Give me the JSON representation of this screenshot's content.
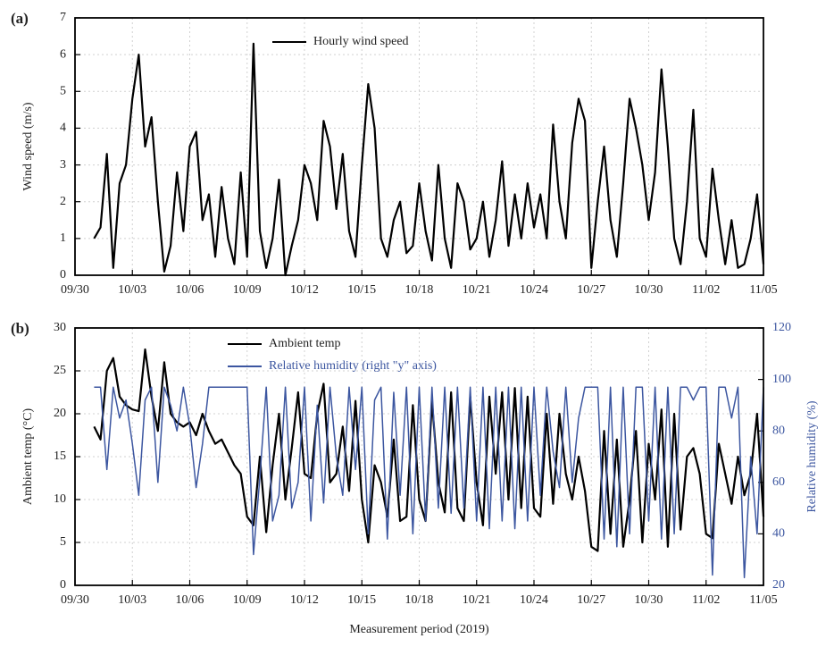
{
  "chart_data": [
    {
      "type": "line",
      "label": "(a)",
      "ylabel": "Wind speed (m/s)",
      "x": [
        24,
        32,
        40,
        48,
        56,
        64,
        72,
        80,
        88,
        96,
        104,
        112,
        120,
        128,
        136,
        144,
        152,
        160,
        168,
        176,
        184,
        192,
        200,
        208,
        216,
        224,
        232,
        240,
        248,
        256,
        264,
        272,
        280,
        288,
        296,
        304,
        312,
        320,
        328,
        336,
        344,
        352,
        360,
        368,
        376,
        384,
        392,
        400,
        408,
        416,
        424,
        432,
        440,
        448,
        456,
        464,
        472,
        480,
        488,
        496,
        504,
        512,
        520,
        528,
        536,
        544,
        552,
        560,
        568,
        576,
        584,
        592,
        600,
        608,
        616,
        624,
        632,
        640,
        648,
        656,
        664,
        672,
        680,
        688,
        696,
        704,
        712,
        720,
        728,
        736,
        744,
        752,
        760,
        768,
        776,
        784,
        792,
        800,
        808,
        816,
        824,
        832,
        840,
        848,
        856,
        864
      ],
      "xlim": [
        0,
        864
      ],
      "xticks": [
        {
          "value": 0,
          "label": "09/30"
        },
        {
          "value": 72,
          "label": "10/03"
        },
        {
          "value": 144,
          "label": "10/06"
        },
        {
          "value": 216,
          "label": "10/09"
        },
        {
          "value": 288,
          "label": "10/12"
        },
        {
          "value": 360,
          "label": "10/15"
        },
        {
          "value": 432,
          "label": "10/18"
        },
        {
          "value": 504,
          "label": "10/21"
        },
        {
          "value": 576,
          "label": "10/24"
        },
        {
          "value": 648,
          "label": "10/27"
        },
        {
          "value": 720,
          "label": "10/30"
        },
        {
          "value": 792,
          "label": "11/02"
        },
        {
          "value": 864,
          "label": "11/05"
        }
      ],
      "ylim": [
        0,
        7
      ],
      "yticks": [
        0,
        1,
        2,
        3,
        4,
        5,
        6,
        7
      ],
      "grid": true,
      "series": [
        {
          "name": "Hourly wind speed",
          "color": "#000000",
          "values": [
            1.0,
            1.3,
            3.3,
            0.2,
            2.5,
            3.0,
            4.8,
            6.0,
            3.5,
            4.3,
            2.0,
            0.1,
            0.8,
            2.8,
            1.2,
            3.5,
            3.9,
            1.5,
            2.2,
            0.5,
            2.4,
            1.0,
            0.3,
            2.8,
            0.5,
            6.3,
            1.2,
            0.2,
            1.0,
            2.6,
            0.0,
            0.8,
            1.5,
            3.0,
            2.5,
            1.5,
            4.2,
            3.5,
            1.8,
            3.3,
            1.2,
            0.5,
            3.0,
            5.2,
            4.0,
            1.0,
            0.5,
            1.5,
            2.0,
            0.6,
            0.8,
            2.5,
            1.2,
            0.4,
            3.0,
            1.0,
            0.2,
            2.5,
            2.0,
            0.7,
            1.0,
            2.0,
            0.5,
            1.5,
            3.1,
            0.8,
            2.2,
            1.0,
            2.5,
            1.3,
            2.2,
            1.0,
            4.1,
            2.0,
            1.0,
            3.6,
            4.8,
            4.2,
            0.2,
            2.0,
            3.5,
            1.5,
            0.5,
            2.5,
            4.8,
            4.0,
            3.0,
            1.5,
            2.8,
            5.6,
            3.5,
            1.0,
            0.3,
            2.0,
            4.5,
            1.0,
            0.5,
            2.9,
            1.5,
            0.3,
            1.5,
            0.2,
            0.3,
            1.0,
            2.2,
            0.3
          ]
        }
      ]
    },
    {
      "type": "line",
      "label": "(b)",
      "ylabel": "Ambient temp (°C)",
      "y2label": "Relative humidity (%)",
      "xlabel": "Measurement period (2019)",
      "x": [
        24,
        32,
        40,
        48,
        56,
        64,
        72,
        80,
        88,
        96,
        104,
        112,
        120,
        128,
        136,
        144,
        152,
        160,
        168,
        176,
        184,
        192,
        200,
        208,
        216,
        224,
        232,
        240,
        248,
        256,
        264,
        272,
        280,
        288,
        296,
        304,
        312,
        320,
        328,
        336,
        344,
        352,
        360,
        368,
        376,
        384,
        392,
        400,
        408,
        416,
        424,
        432,
        440,
        448,
        456,
        464,
        472,
        480,
        488,
        496,
        504,
        512,
        520,
        528,
        536,
        544,
        552,
        560,
        568,
        576,
        584,
        592,
        600,
        608,
        616,
        624,
        632,
        640,
        648,
        656,
        664,
        672,
        680,
        688,
        696,
        704,
        712,
        720,
        728,
        736,
        744,
        752,
        760,
        768,
        776,
        784,
        792,
        800,
        808,
        816,
        824,
        832,
        840,
        848,
        856,
        864
      ],
      "xlim": [
        0,
        864
      ],
      "xticks": [
        {
          "value": 0,
          "label": "09/30"
        },
        {
          "value": 72,
          "label": "10/03"
        },
        {
          "value": 144,
          "label": "10/06"
        },
        {
          "value": 216,
          "label": "10/09"
        },
        {
          "value": 288,
          "label": "10/12"
        },
        {
          "value": 360,
          "label": "10/15"
        },
        {
          "value": 432,
          "label": "10/18"
        },
        {
          "value": 504,
          "label": "10/21"
        },
        {
          "value": 576,
          "label": "10/24"
        },
        {
          "value": 648,
          "label": "10/27"
        },
        {
          "value": 720,
          "label": "10/30"
        },
        {
          "value": 792,
          "label": "11/02"
        },
        {
          "value": 864,
          "label": "11/05"
        }
      ],
      "ylim": [
        0,
        30
      ],
      "yticks": [
        0,
        5,
        10,
        15,
        20,
        25,
        30
      ],
      "y2lim": [
        20,
        120
      ],
      "y2ticks": [
        20,
        40,
        60,
        80,
        100,
        120
      ],
      "grid": true,
      "series": [
        {
          "name": "Ambient temp",
          "color": "#000000",
          "values": [
            18.5,
            17,
            25,
            26.5,
            22,
            21,
            20.5,
            20.3,
            27.5,
            22,
            18,
            26,
            20,
            19,
            18.5,
            19,
            17.5,
            20,
            18,
            16.5,
            17,
            15.5,
            14,
            13,
            8,
            7,
            15,
            6.2,
            14,
            20,
            10,
            16,
            22.5,
            13,
            12.5,
            20,
            23.5,
            12,
            13,
            18.5,
            11,
            21.5,
            10,
            5,
            14,
            12,
            8,
            17,
            7.5,
            8,
            21,
            10,
            7.5,
            21.5,
            12,
            8.5,
            22.5,
            9,
            7.5,
            22,
            12,
            7,
            22,
            13,
            22.5,
            10,
            23,
            9,
            22,
            9,
            8,
            20,
            9.5,
            20,
            13,
            10,
            15,
            11,
            4.5,
            4,
            18,
            6,
            17,
            4.5,
            10,
            18,
            5,
            16.5,
            10,
            20.5,
            4.5,
            20,
            6.5,
            15,
            16,
            13,
            6,
            5.5,
            16.5,
            13,
            9.5,
            15,
            10.5,
            13,
            20,
            8
          ]
        },
        {
          "name": "Relative humidity (right \"y\" axis)",
          "color": "#3c56a0",
          "axis": "y2",
          "values": [
            97,
            97,
            65,
            97,
            85,
            92,
            75,
            55,
            92,
            97,
            60,
            97,
            90,
            80,
            97,
            82,
            58,
            75,
            97,
            97,
            97,
            97,
            97,
            97,
            97,
            32,
            62,
            97,
            45,
            55,
            97,
            50,
            60,
            97,
            45,
            90,
            52,
            97,
            70,
            55,
            97,
            65,
            97,
            40,
            92,
            97,
            38,
            95,
            55,
            97,
            40,
            97,
            45,
            97,
            50,
            97,
            48,
            97,
            50,
            97,
            45,
            97,
            42,
            97,
            45,
            97,
            42,
            97,
            45,
            97,
            55,
            97,
            72,
            58,
            97,
            60,
            85,
            97,
            97,
            97,
            38,
            97,
            35,
            97,
            40,
            97,
            97,
            45,
            97,
            38,
            97,
            40,
            97,
            97,
            92,
            97,
            97,
            24,
            97,
            97,
            85,
            97,
            23,
            70,
            40,
            97
          ]
        }
      ]
    }
  ]
}
